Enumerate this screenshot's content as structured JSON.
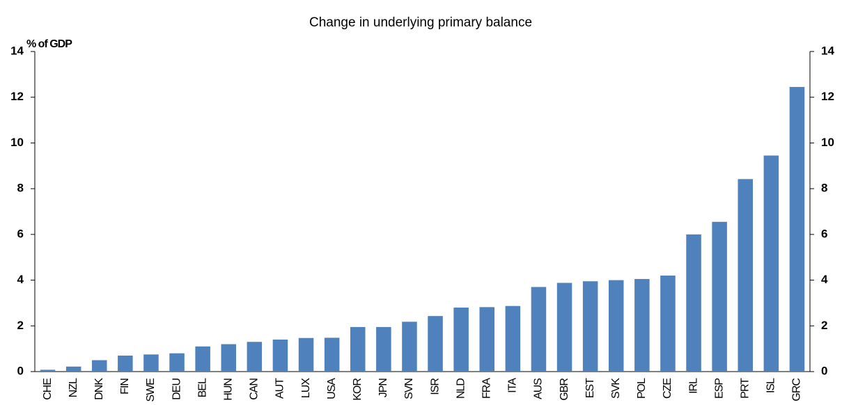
{
  "chart_data": {
    "type": "bar",
    "title": "Change in underlying primary balance",
    "y_label": "% of GDP",
    "categories": [
      "CHE",
      "NZL",
      "DNK",
      "FIN",
      "SWE",
      "DEU",
      "BEL",
      "HUN",
      "CAN",
      "AUT",
      "LUX",
      "USA",
      "KOR",
      "JPN",
      "SVN",
      "ISR",
      "NLD",
      "FRA",
      "ITA",
      "AUS",
      "GBR",
      "EST",
      "SVK",
      "POL",
      "CZE",
      "IRL",
      "ESP",
      "PRT",
      "ISL",
      "GRC"
    ],
    "values": [
      0.08,
      0.22,
      0.5,
      0.7,
      0.75,
      0.8,
      1.1,
      1.2,
      1.3,
      1.4,
      1.47,
      1.48,
      1.95,
      1.95,
      2.18,
      2.43,
      2.8,
      2.82,
      2.87,
      3.7,
      3.88,
      3.95,
      4.0,
      4.05,
      4.2,
      6.0,
      6.55,
      8.42,
      9.45,
      12.45
    ],
    "color": "#4f81bd",
    "ylim": [
      0,
      14
    ],
    "yticks": [
      0,
      2,
      4,
      6,
      8,
      10,
      12,
      14
    ],
    "y2lim": [
      0,
      14
    ],
    "y2ticks": [
      0,
      2,
      4,
      6,
      8,
      10,
      12,
      14
    ],
    "grid": false
  }
}
